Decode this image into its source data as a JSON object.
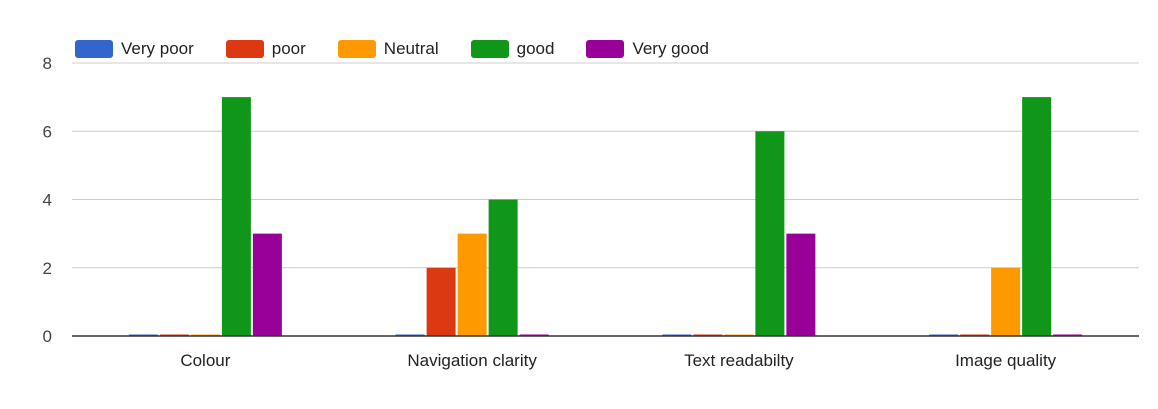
{
  "chart_data": {
    "type": "bar",
    "title": "",
    "xlabel": "",
    "ylabel": "",
    "categories": [
      "Colour",
      "Navigation clarity",
      "Text readabilty",
      "Image quality"
    ],
    "series": [
      {
        "name": "Very poor",
        "color": "#3366cc",
        "values": [
          0,
          0,
          0,
          0
        ]
      },
      {
        "name": "poor",
        "color": "#dc3912",
        "values": [
          0,
          2,
          0,
          0
        ]
      },
      {
        "name": "Neutral",
        "color": "#ff9900",
        "values": [
          0,
          3,
          0,
          2
        ]
      },
      {
        "name": "good",
        "color": "#109618",
        "values": [
          7,
          4,
          6,
          7
        ]
      },
      {
        "name": "Very good",
        "color": "#990099",
        "values": [
          3,
          0,
          3,
          0
        ]
      }
    ],
    "ylim": [
      0,
      8
    ],
    "yticks": [
      0,
      2,
      4,
      6,
      8
    ],
    "grid": true,
    "legend_position": "top-left"
  }
}
